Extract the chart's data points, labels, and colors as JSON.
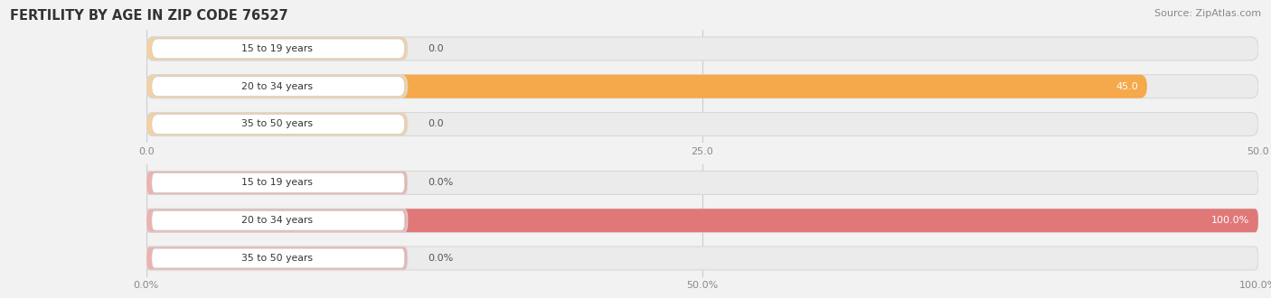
{
  "title": "FERTILITY BY AGE IN ZIP CODE 76527",
  "source": "Source: ZipAtlas.com",
  "top_chart": {
    "categories": [
      "15 to 19 years",
      "20 to 34 years",
      "35 to 50 years"
    ],
    "values": [
      0.0,
      45.0,
      0.0
    ],
    "xlim": [
      0,
      50
    ],
    "xticks": [
      0.0,
      25.0,
      50.0
    ],
    "xtick_labels": [
      "0.0",
      "25.0",
      "50.0"
    ],
    "bar_color": "#F5A94A",
    "bar_color_light": "#F5D0A0",
    "tab_edge_color": "#E8A060",
    "bg_bar_color": "#ebebeb",
    "bg_bar_edge": "#d8d8d8"
  },
  "bottom_chart": {
    "categories": [
      "15 to 19 years",
      "20 to 34 years",
      "35 to 50 years"
    ],
    "values": [
      0.0,
      100.0,
      0.0
    ],
    "xlim": [
      0,
      100
    ],
    "xticks": [
      0.0,
      50.0,
      100.0
    ],
    "xtick_labels": [
      "0.0%",
      "50.0%",
      "100.0%"
    ],
    "bar_color": "#E07878",
    "bar_color_light": "#EEB0B0",
    "tab_edge_color": "#D06060",
    "bg_bar_color": "#ebebeb",
    "bg_bar_edge": "#d8d8d8"
  },
  "fig_bg": "#f2f2f2",
  "figsize": [
    14.06,
    3.3
  ],
  "dpi": 100,
  "title_fontsize": 10.5,
  "source_fontsize": 8
}
